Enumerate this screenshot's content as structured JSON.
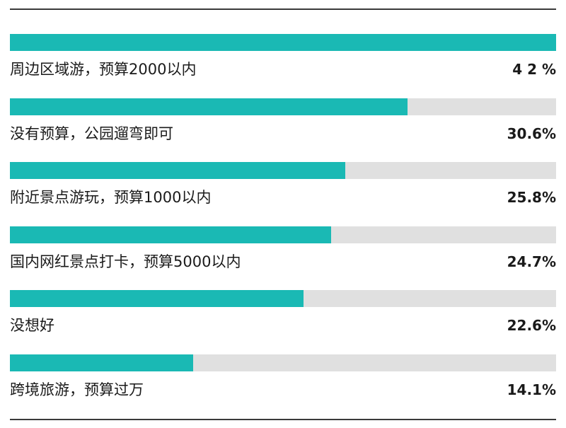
{
  "colors": {
    "bar_fill": "#1ab9b4",
    "bar_track": "#e0e0e0",
    "text": "#1a1a1a",
    "rule": "#3a3a3a"
  },
  "chart_data": {
    "type": "bar",
    "orientation": "horizontal",
    "title": "",
    "xlabel": "",
    "ylabel": "",
    "xlim": [
      0,
      42
    ],
    "grid": false,
    "legend": "none",
    "categories": [
      "周边区域游，预算2000以内",
      "没有预算，公园遛弯即可",
      "附近景点游玩，预算1000以内",
      "国内网红景点打卡，预算5000以内",
      "没想好",
      "跨境旅游，预算过万"
    ],
    "values": [
      42,
      30.6,
      25.8,
      24.7,
      22.6,
      14.1
    ],
    "value_labels": [
      "4 2 %",
      "30.6%",
      "25.8%",
      "24.7%",
      "22.6%",
      "14.1%"
    ]
  }
}
